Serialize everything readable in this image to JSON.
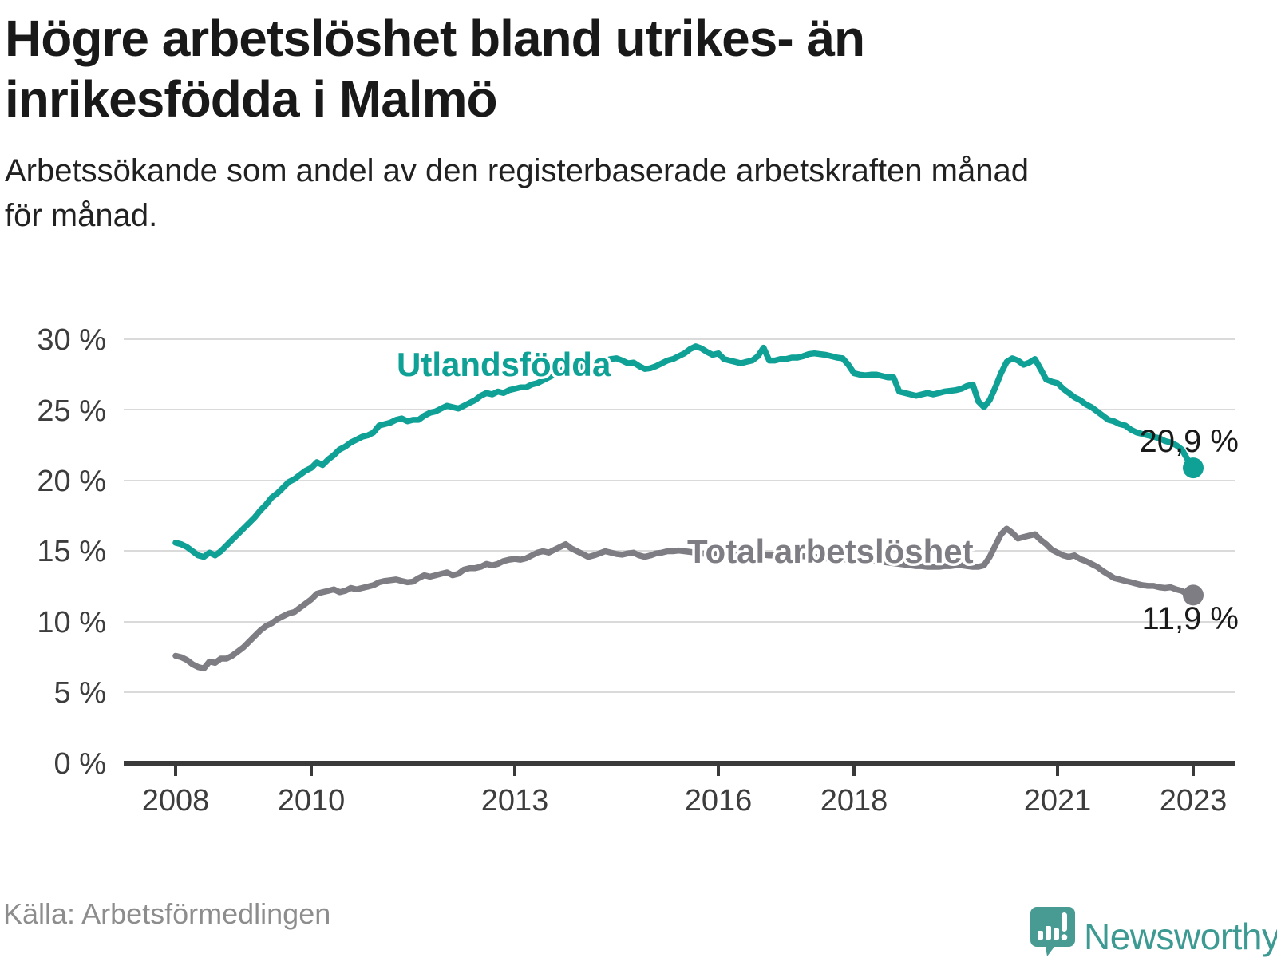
{
  "title": {
    "line1": "Högre arbetslöshet bland utrikes- än",
    "line2": "inrikesfödda i Malmö"
  },
  "subtitle": {
    "line1": "Arbetssökande som andel av den registerbaserade arbetskraften månad",
    "line2": "för månad."
  },
  "source": "Källa: Arbetsförmedlingen",
  "brand": "Newsworthy",
  "colors": {
    "accent_teal": "#0fa096",
    "series_gray": "#7d7d83",
    "grid": "#dadada",
    "axis": "#3a3a3a",
    "end_label": "#1a1a1a",
    "brand_teal": "#3d9a93"
  },
  "chart_data": {
    "type": "line",
    "unit": "%",
    "frequency": "monthly",
    "x_start": "2008-01",
    "x_end": "2023-01",
    "grid": "horizontal",
    "ylim": [
      0,
      31.5
    ],
    "y_ticks": [
      30,
      25,
      20,
      15,
      10,
      5,
      0
    ],
    "y_tick_labels": [
      "30 %",
      "25 %",
      "20 %",
      "15 %",
      "10 %",
      "5 %",
      "0 %"
    ],
    "x_ticks": [
      "2008",
      "2010",
      "2013",
      "2016",
      "2018",
      "2021",
      "2023"
    ],
    "series": [
      {
        "name": "Utlandsfödda",
        "color": "#0fa096",
        "end_label": "20,9 %",
        "end_value": 20.9,
        "values": [
          15.6,
          15.5,
          15.3,
          15.0,
          14.7,
          14.6,
          14.9,
          14.7,
          15.0,
          15.4,
          15.8,
          16.2,
          16.6,
          17.0,
          17.4,
          17.9,
          18.3,
          18.8,
          19.1,
          19.5,
          19.9,
          20.1,
          20.4,
          20.7,
          20.9,
          21.3,
          21.1,
          21.5,
          21.8,
          22.2,
          22.4,
          22.7,
          22.9,
          23.1,
          23.2,
          23.4,
          23.9,
          24.0,
          24.1,
          24.3,
          24.4,
          24.2,
          24.3,
          24.3,
          24.6,
          24.8,
          24.9,
          25.1,
          25.3,
          25.2,
          25.1,
          25.3,
          25.5,
          25.7,
          26.0,
          26.2,
          26.1,
          26.3,
          26.2,
          26.4,
          26.5,
          26.6,
          26.6,
          26.8,
          26.9,
          27.1,
          27.3,
          27.5,
          27.7,
          28.0,
          27.8,
          28.0,
          28.1,
          28.2,
          28.3,
          28.4,
          28.5,
          28.6,
          28.65,
          28.5,
          28.3,
          28.35,
          28.1,
          27.9,
          27.95,
          28.1,
          28.3,
          28.5,
          28.6,
          28.8,
          29.0,
          29.3,
          29.5,
          29.35,
          29.1,
          28.9,
          29.0,
          28.6,
          28.5,
          28.4,
          28.3,
          28.4,
          28.5,
          28.8,
          29.4,
          28.5,
          28.5,
          28.6,
          28.6,
          28.7,
          28.7,
          28.8,
          28.95,
          29.0,
          28.95,
          28.9,
          28.8,
          28.7,
          28.65,
          28.2,
          27.6,
          27.5,
          27.45,
          27.5,
          27.5,
          27.4,
          27.3,
          27.3,
          26.3,
          26.2,
          26.1,
          26.0,
          26.1,
          26.2,
          26.1,
          26.2,
          26.3,
          26.35,
          26.4,
          26.5,
          26.7,
          26.8,
          25.6,
          25.2,
          25.7,
          26.6,
          27.6,
          28.4,
          28.65,
          28.5,
          28.2,
          28.35,
          28.6,
          27.9,
          27.15,
          27.0,
          26.9,
          26.5,
          26.2,
          25.9,
          25.7,
          25.4,
          25.2,
          24.9,
          24.6,
          24.3,
          24.2,
          24.0,
          23.9,
          23.6,
          23.4,
          23.3,
          23.2,
          23.1,
          23.0,
          22.8,
          22.7,
          22.5,
          22.2,
          21.5,
          20.9
        ]
      },
      {
        "name": "Total arbetslöshet",
        "color": "#7d7d83",
        "end_label": "11,9 %",
        "end_value": 11.9,
        "values": [
          7.6,
          7.5,
          7.3,
          7.0,
          6.8,
          6.7,
          7.2,
          7.1,
          7.4,
          7.4,
          7.6,
          7.9,
          8.2,
          8.6,
          9.0,
          9.4,
          9.7,
          9.9,
          10.2,
          10.4,
          10.6,
          10.7,
          11.0,
          11.3,
          11.6,
          12.0,
          12.1,
          12.2,
          12.3,
          12.1,
          12.2,
          12.4,
          12.3,
          12.4,
          12.5,
          12.6,
          12.8,
          12.9,
          12.95,
          13.0,
          12.9,
          12.8,
          12.85,
          13.1,
          13.3,
          13.2,
          13.3,
          13.4,
          13.5,
          13.3,
          13.4,
          13.7,
          13.8,
          13.8,
          13.9,
          14.1,
          14.0,
          14.1,
          14.3,
          14.4,
          14.45,
          14.4,
          14.5,
          14.7,
          14.9,
          15.0,
          14.9,
          15.1,
          15.3,
          15.5,
          15.2,
          15.0,
          14.8,
          14.6,
          14.7,
          14.85,
          15.0,
          14.9,
          14.8,
          14.75,
          14.85,
          14.9,
          14.7,
          14.6,
          14.7,
          14.85,
          14.9,
          15.0,
          15.0,
          15.05,
          15.0,
          14.95,
          14.9,
          14.85,
          14.8,
          14.8,
          14.9,
          14.85,
          14.8,
          14.75,
          14.7,
          14.75,
          14.75,
          14.8,
          14.75,
          14.7,
          14.7,
          14.65,
          14.65,
          14.6,
          14.6,
          14.65,
          14.6,
          14.6,
          14.55,
          14.5,
          14.5,
          14.45,
          14.45,
          14.4,
          14.4,
          14.35,
          14.35,
          14.3,
          14.3,
          14.25,
          14.2,
          14.15,
          14.1,
          14.05,
          14.0,
          13.95,
          13.95,
          13.9,
          13.9,
          13.9,
          13.95,
          13.95,
          14.0,
          14.0,
          13.95,
          13.9,
          13.9,
          14.0,
          14.6,
          15.4,
          16.2,
          16.6,
          16.3,
          15.9,
          16.0,
          16.1,
          16.2,
          15.8,
          15.5,
          15.1,
          14.9,
          14.7,
          14.6,
          14.7,
          14.45,
          14.3,
          14.1,
          13.9,
          13.6,
          13.35,
          13.1,
          13.0,
          12.9,
          12.8,
          12.7,
          12.6,
          12.55,
          12.55,
          12.45,
          12.4,
          12.45,
          12.3,
          12.2,
          11.95,
          11.9
        ]
      }
    ]
  }
}
